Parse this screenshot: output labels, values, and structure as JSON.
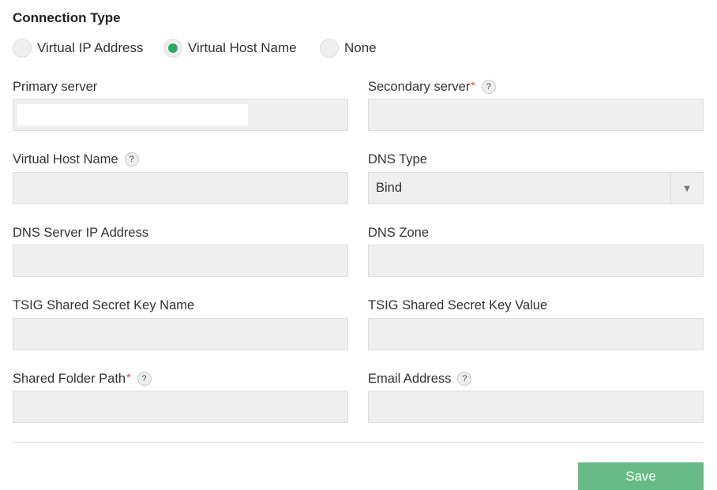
{
  "title": "Connection Type",
  "radios": [
    {
      "label": "Virtual IP Address",
      "selected": false
    },
    {
      "label": "Virtual Host Name",
      "selected": true
    },
    {
      "label": "None",
      "selected": false
    }
  ],
  "accent": "#2eaa63",
  "fields": {
    "primary": {
      "label": "Primary server",
      "value": ""
    },
    "secondary": {
      "label": "Secondary server",
      "required": "*",
      "help": "?",
      "value": ""
    },
    "vhost": {
      "label": "Virtual Host Name",
      "help": "?",
      "value": ""
    },
    "dns_type": {
      "label": "DNS Type",
      "value": "Bind"
    },
    "dns_ip": {
      "label": "DNS Server IP Address",
      "value": ""
    },
    "dns_zone": {
      "label": "DNS Zone",
      "value": ""
    },
    "tsig_name": {
      "label": "TSIG Shared Secret Key Name",
      "value": ""
    },
    "tsig_value": {
      "label": "TSIG Shared Secret Key Value",
      "value": ""
    },
    "shared": {
      "label": "Shared Folder Path",
      "required": "*",
      "help": "?",
      "value": ""
    },
    "email": {
      "label": "Email Address",
      "help": "?",
      "value": ""
    }
  },
  "save_label": "Save"
}
